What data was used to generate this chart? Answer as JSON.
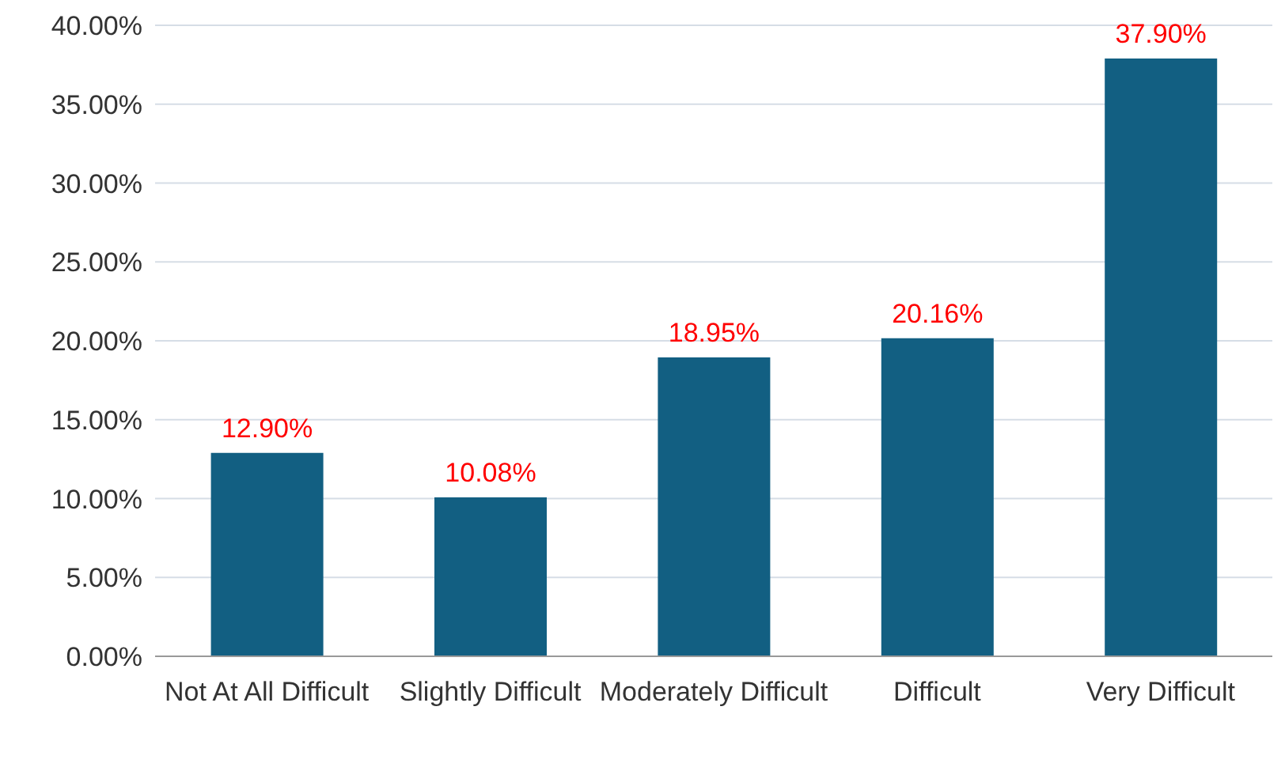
{
  "chart_data": {
    "type": "bar",
    "categories": [
      "Not At All Difficult",
      "Slightly Difficult",
      "Moderately Difficult",
      "Difficult",
      "Very Difficult"
    ],
    "values": [
      12.9,
      10.08,
      18.95,
      20.16,
      37.9
    ],
    "value_labels": [
      "12.90%",
      "10.08%",
      "18.95%",
      "20.16%",
      "37.90%"
    ],
    "color": "#125f82",
    "ylim": [
      0,
      40
    ],
    "yticks": [
      {
        "value": 0,
        "label": "0.00%"
      },
      {
        "value": 5,
        "label": "5.00%"
      },
      {
        "value": 10,
        "label": "10.00%"
      },
      {
        "value": 15,
        "label": "15.00%"
      },
      {
        "value": 20,
        "label": "20.00%"
      },
      {
        "value": 25,
        "label": "25.00%"
      },
      {
        "value": 30,
        "label": "30.00%"
      },
      {
        "value": 35,
        "label": "35.00%"
      },
      {
        "value": 40,
        "label": "40.00%"
      }
    ],
    "grid": "y"
  }
}
